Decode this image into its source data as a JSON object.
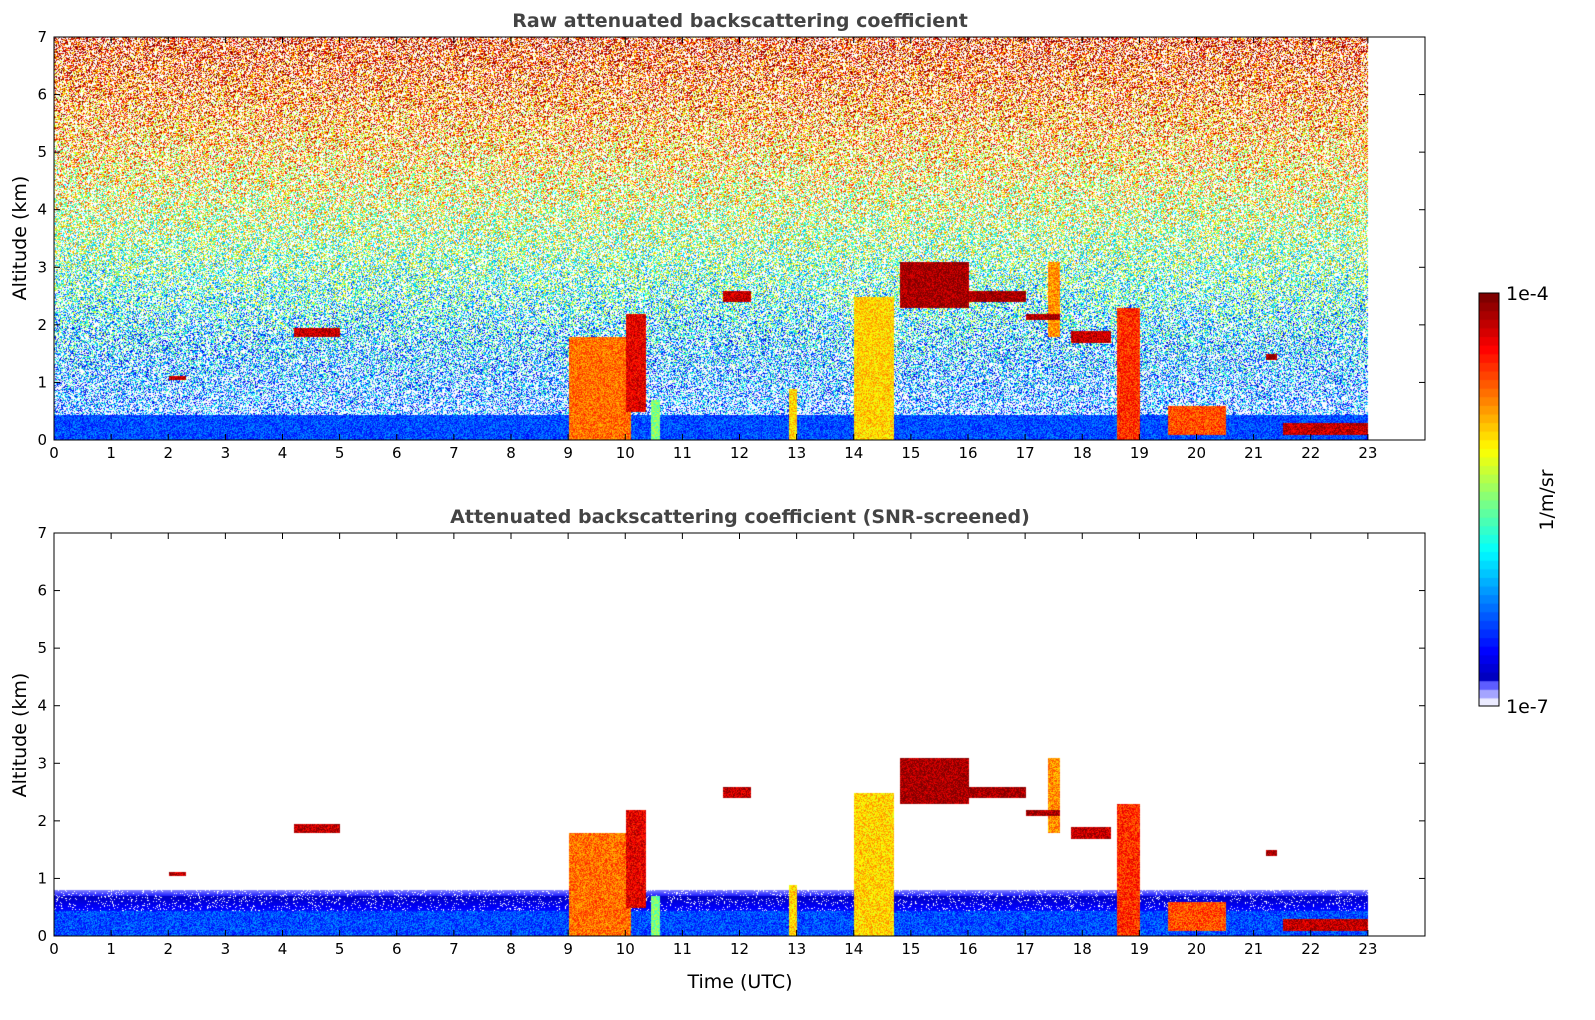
{
  "chart_data": [
    {
      "type": "heatmap",
      "title": "Raw attenuated backscattering coefficient",
      "xlabel": "",
      "ylabel": "Altitude (km)",
      "xlim": [
        0,
        24
      ],
      "ylim": [
        0,
        7
      ],
      "x_ticks": [
        "0",
        "1",
        "2",
        "3",
        "4",
        "5",
        "6",
        "7",
        "8",
        "9",
        "10",
        "11",
        "12",
        "13",
        "14",
        "15",
        "16",
        "17",
        "18",
        "19",
        "20",
        "21",
        "22",
        "23"
      ],
      "y_ticks": [
        "0",
        "1",
        "2",
        "3",
        "4",
        "5",
        "6",
        "7"
      ],
      "data_end_time": 23,
      "noise": true,
      "features_log10": [
        {
          "t": [
            0,
            23
          ],
          "z": [
            0,
            0.45
          ],
          "v": -6.4
        },
        {
          "t": [
            4.2,
            5.0
          ],
          "z": [
            1.8,
            1.95
          ],
          "v": -4.2
        },
        {
          "t": [
            2.0,
            2.3
          ],
          "z": [
            1.05,
            1.12
          ],
          "v": -4.2
        },
        {
          "t": [
            9.0,
            10.1
          ],
          "z": [
            0,
            1.8
          ],
          "v": -4.7
        },
        {
          "t": [
            10.0,
            10.35
          ],
          "z": [
            0.5,
            2.2
          ],
          "v": -4.3
        },
        {
          "t": [
            10.45,
            10.6
          ],
          "z": [
            0,
            0.7
          ],
          "v": -5.5
        },
        {
          "t": [
            11.7,
            12.2
          ],
          "z": [
            2.4,
            2.6
          ],
          "v": -4.2
        },
        {
          "t": [
            12.85,
            13.0
          ],
          "z": [
            0,
            0.9
          ],
          "v": -5.0
        },
        {
          "t": [
            14.0,
            14.7
          ],
          "z": [
            0,
            2.5
          ],
          "v": -5.0
        },
        {
          "t": [
            14.8,
            16.0
          ],
          "z": [
            2.3,
            3.1
          ],
          "v": -4.1
        },
        {
          "t": [
            16.0,
            17.0
          ],
          "z": [
            2.4,
            2.6
          ],
          "v": -4.1
        },
        {
          "t": [
            17.0,
            17.6
          ],
          "z": [
            2.1,
            2.2
          ],
          "v": -4.1
        },
        {
          "t": [
            17.4,
            17.6
          ],
          "z": [
            1.8,
            3.1
          ],
          "v": -4.8
        },
        {
          "t": [
            17.8,
            18.5
          ],
          "z": [
            1.7,
            1.9
          ],
          "v": -4.2
        },
        {
          "t": [
            18.6,
            19.0
          ],
          "z": [
            0,
            2.3
          ],
          "v": -4.5
        },
        {
          "t": [
            19.5,
            20.5
          ],
          "z": [
            0.1,
            0.6
          ],
          "v": -4.6
        },
        {
          "t": [
            21.2,
            21.4
          ],
          "z": [
            1.4,
            1.5
          ],
          "v": -4.1
        },
        {
          "t": [
            21.5,
            23.0
          ],
          "z": [
            0.1,
            0.3
          ],
          "v": -4.2
        }
      ]
    },
    {
      "type": "heatmap",
      "title": "Attenuated backscattering coefficient (SNR-screened)",
      "xlabel": "Time (UTC)",
      "ylabel": "Altitude (km)",
      "xlim": [
        0,
        24
      ],
      "ylim": [
        0,
        7
      ],
      "x_ticks": [
        "0",
        "1",
        "2",
        "3",
        "4",
        "5",
        "6",
        "7",
        "8",
        "9",
        "10",
        "11",
        "12",
        "13",
        "14",
        "15",
        "16",
        "17",
        "18",
        "19",
        "20",
        "21",
        "22",
        "23"
      ],
      "y_ticks": [
        "0",
        "1",
        "2",
        "3",
        "4",
        "5",
        "6",
        "7"
      ],
      "noise": false
    }
  ],
  "colorbar": {
    "label": "1/m/sr",
    "max_label": "1e-4",
    "min_label": "1e-7",
    "log10_range": [
      -7,
      -4
    ],
    "colormap": "jet"
  }
}
